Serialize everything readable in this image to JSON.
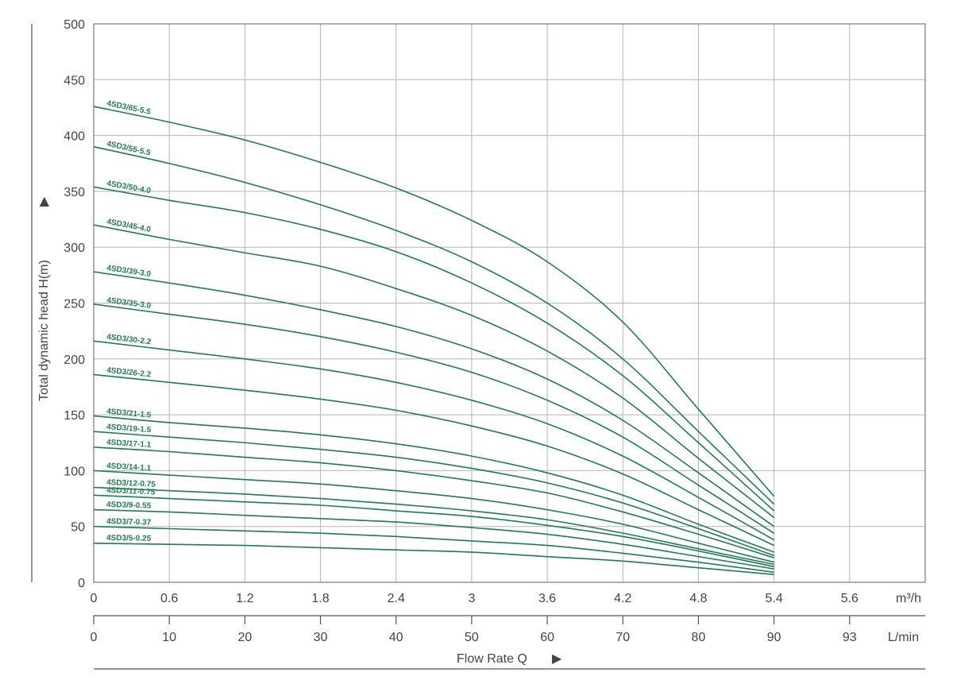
{
  "chart_data": {
    "type": "line",
    "title": "",
    "ylabel": "Total dynamic head H(m)",
    "ylabel_arrow": "▶",
    "xlabel": "Flow Rate Q",
    "xlabel_arrow": "▶",
    "x_unit_primary": "m³/h",
    "x_unit_secondary": "L/min",
    "xlim": [
      0,
      5.4
    ],
    "ylim": [
      0,
      500
    ],
    "grid": true,
    "y_ticks": [
      "0",
      "50",
      "100",
      "150",
      "200",
      "250",
      "300",
      "350",
      "400",
      "450",
      "500"
    ],
    "x_ticks_primary": [
      "0",
      "0.6",
      "1.2",
      "1.8",
      "2.4",
      "3",
      "3.6",
      "4.2",
      "4.8",
      "5.4",
      "5.6"
    ],
    "x_ticks_secondary": [
      "0",
      "10",
      "20",
      "30",
      "40",
      "50",
      "60",
      "70",
      "80",
      "90",
      "93"
    ],
    "x": [
      0,
      0.6,
      1.2,
      1.8,
      2.4,
      3.0,
      3.6,
      4.2,
      4.8,
      5.4
    ],
    "series": [
      {
        "name": "4SD3/65-5.5",
        "values": [
          426,
          412,
          396,
          376,
          353,
          324,
          287,
          233,
          155,
          77
        ]
      },
      {
        "name": "4SD3/55-5.5",
        "values": [
          390,
          375,
          358,
          338,
          315,
          287,
          250,
          200,
          135,
          70
        ]
      },
      {
        "name": "4SD3/50-4.0",
        "values": [
          354,
          342,
          331,
          316,
          296,
          268,
          232,
          185,
          125,
          64
        ]
      },
      {
        "name": "4SD3/45-4.0",
        "values": [
          320,
          307,
          295,
          283,
          263,
          239,
          207,
          165,
          111,
          58
        ]
      },
      {
        "name": "4SD3/39-3.0",
        "values": [
          278,
          268,
          257,
          244,
          229,
          209,
          182,
          145,
          98,
          50
        ]
      },
      {
        "name": "4SD3/35-3.0",
        "values": [
          249,
          240,
          231,
          220,
          206,
          188,
          163,
          130,
          87,
          44
        ]
      },
      {
        "name": "4SD3/30-2.2",
        "values": [
          216,
          208,
          200,
          191,
          179,
          163,
          142,
          113,
          76,
          38
        ]
      },
      {
        "name": "4SD3/26-2.2",
        "values": [
          186,
          179,
          172,
          164,
          154,
          140,
          122,
          97,
          65,
          33
        ]
      },
      {
        "name": "4SD3/21-1.5",
        "values": [
          149,
          143,
          138,
          132,
          124,
          113,
          98,
          78,
          52,
          27
        ]
      },
      {
        "name": "4SD3/19-1.5",
        "values": [
          135,
          130,
          125,
          119,
          112,
          102,
          89,
          71,
          48,
          24
        ]
      },
      {
        "name": "4SD3/17-1.1",
        "values": [
          121,
          117,
          112,
          107,
          100,
          91,
          80,
          63,
          43,
          22
        ]
      },
      {
        "name": "4SD3/14-1.1",
        "values": [
          100,
          96,
          92,
          88,
          82,
          75,
          65,
          52,
          35,
          18
        ]
      },
      {
        "name": "4SD3/12-0.75",
        "values": [
          85,
          82,
          79,
          75,
          70,
          64,
          56,
          44,
          30,
          16
        ]
      },
      {
        "name": "4SD3/11-0.75",
        "values": [
          78,
          75,
          72,
          69,
          64,
          59,
          51,
          41,
          28,
          14
        ]
      },
      {
        "name": "4SD3/9-0.55",
        "values": [
          65,
          63,
          60,
          57,
          54,
          49,
          43,
          34,
          23,
          12
        ]
      },
      {
        "name": "4SD3/7-0.37",
        "values": [
          50,
          48,
          46,
          44,
          41,
          37,
          33,
          26,
          18,
          9
        ]
      },
      {
        "name": "4SD3/5-0.25",
        "values": [
          35,
          34,
          33,
          31,
          29,
          27,
          23,
          19,
          13,
          7
        ]
      }
    ]
  }
}
